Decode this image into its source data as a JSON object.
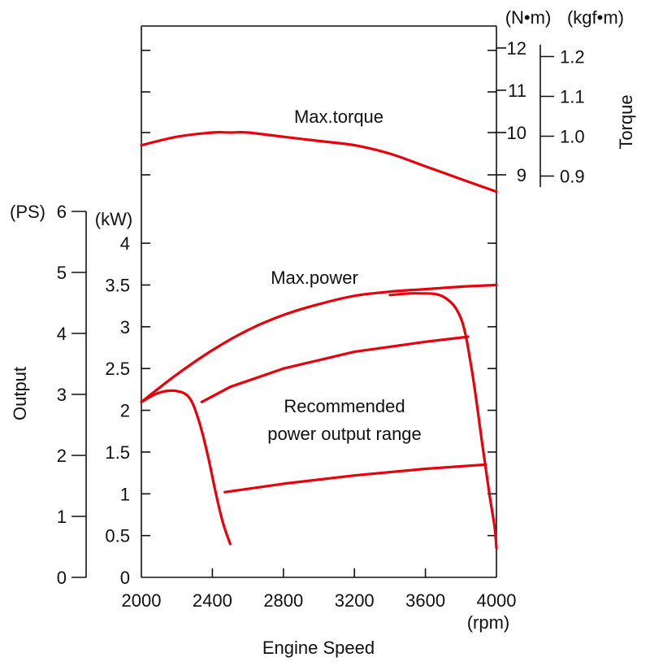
{
  "chart_data": {
    "type": "line",
    "xlabel": "Engine Speed",
    "x_unit": "(rpm)",
    "x_ticks": [
      "2000",
      "2400",
      "2800",
      "3200",
      "3600",
      "4000"
    ],
    "xlim": [
      2000,
      4000
    ],
    "kw_axis": {
      "unit": "(kW)",
      "ticks": [
        "0",
        "0.5",
        "1",
        "1.5",
        "2",
        "2.5",
        "3",
        "3.5",
        "4"
      ],
      "lim": [
        0,
        4.4
      ]
    },
    "ps_axis": {
      "title": "Output",
      "unit": "(PS)",
      "ticks": [
        "0",
        "1",
        "2",
        "3",
        "4",
        "5",
        "6"
      ]
    },
    "torque_axis": {
      "title": "Torque",
      "nm_unit": "(N•m)",
      "kgfm_unit": "(kgf•m)",
      "nm_ticks": [
        "9",
        "10",
        "11",
        "12"
      ],
      "kgfm_ticks": [
        "0.9",
        "1.0",
        "1.1",
        "1.2"
      ]
    },
    "annotations": {
      "max_torque": "Max.torque",
      "max_power": "Max.power",
      "range_line1": "Recommended",
      "range_line2": "power output range"
    },
    "series": [
      {
        "name": "Max.torque",
        "axis": "torque_nm",
        "x": [
          2000,
          2200,
          2400,
          2500,
          2600,
          2800,
          3000,
          3200,
          3400,
          3600,
          3800,
          4000
        ],
        "y": [
          9.7,
          9.9,
          10.0,
          10.0,
          10.0,
          9.9,
          9.8,
          9.7,
          9.5,
          9.2,
          8.9,
          8.6
        ]
      },
      {
        "name": "Max.power",
        "axis": "kW",
        "x": [
          2000,
          2200,
          2400,
          2600,
          2800,
          3000,
          3200,
          3400,
          3600,
          3800,
          4000
        ],
        "y": [
          2.1,
          2.43,
          2.72,
          2.96,
          3.14,
          3.27,
          3.37,
          3.42,
          3.45,
          3.48,
          3.5
        ]
      },
      {
        "name": "range_upper",
        "axis": "kW",
        "x": [
          2340,
          2500,
          2800,
          3200,
          3600,
          3840
        ],
        "y": [
          2.1,
          2.28,
          2.5,
          2.7,
          2.82,
          2.88
        ]
      },
      {
        "name": "range_lower",
        "axis": "kW",
        "x": [
          2470,
          2800,
          3200,
          3600,
          3940
        ],
        "y": [
          1.02,
          1.12,
          1.22,
          1.3,
          1.35
        ]
      },
      {
        "name": "low_speed_envelope",
        "axis": "kW",
        "x": [
          2000,
          2100,
          2200,
          2270,
          2320,
          2370,
          2420,
          2460,
          2500
        ],
        "y": [
          2.1,
          2.21,
          2.23,
          2.15,
          1.9,
          1.5,
          1.0,
          0.65,
          0.4
        ]
      },
      {
        "name": "high_speed_envelope",
        "axis": "kW",
        "x": [
          3400,
          3550,
          3700,
          3800,
          3860,
          3920,
          3960,
          3990,
          4000
        ],
        "y": [
          3.38,
          3.4,
          3.36,
          3.1,
          2.5,
          1.6,
          1.0,
          0.6,
          0.35
        ]
      }
    ]
  }
}
